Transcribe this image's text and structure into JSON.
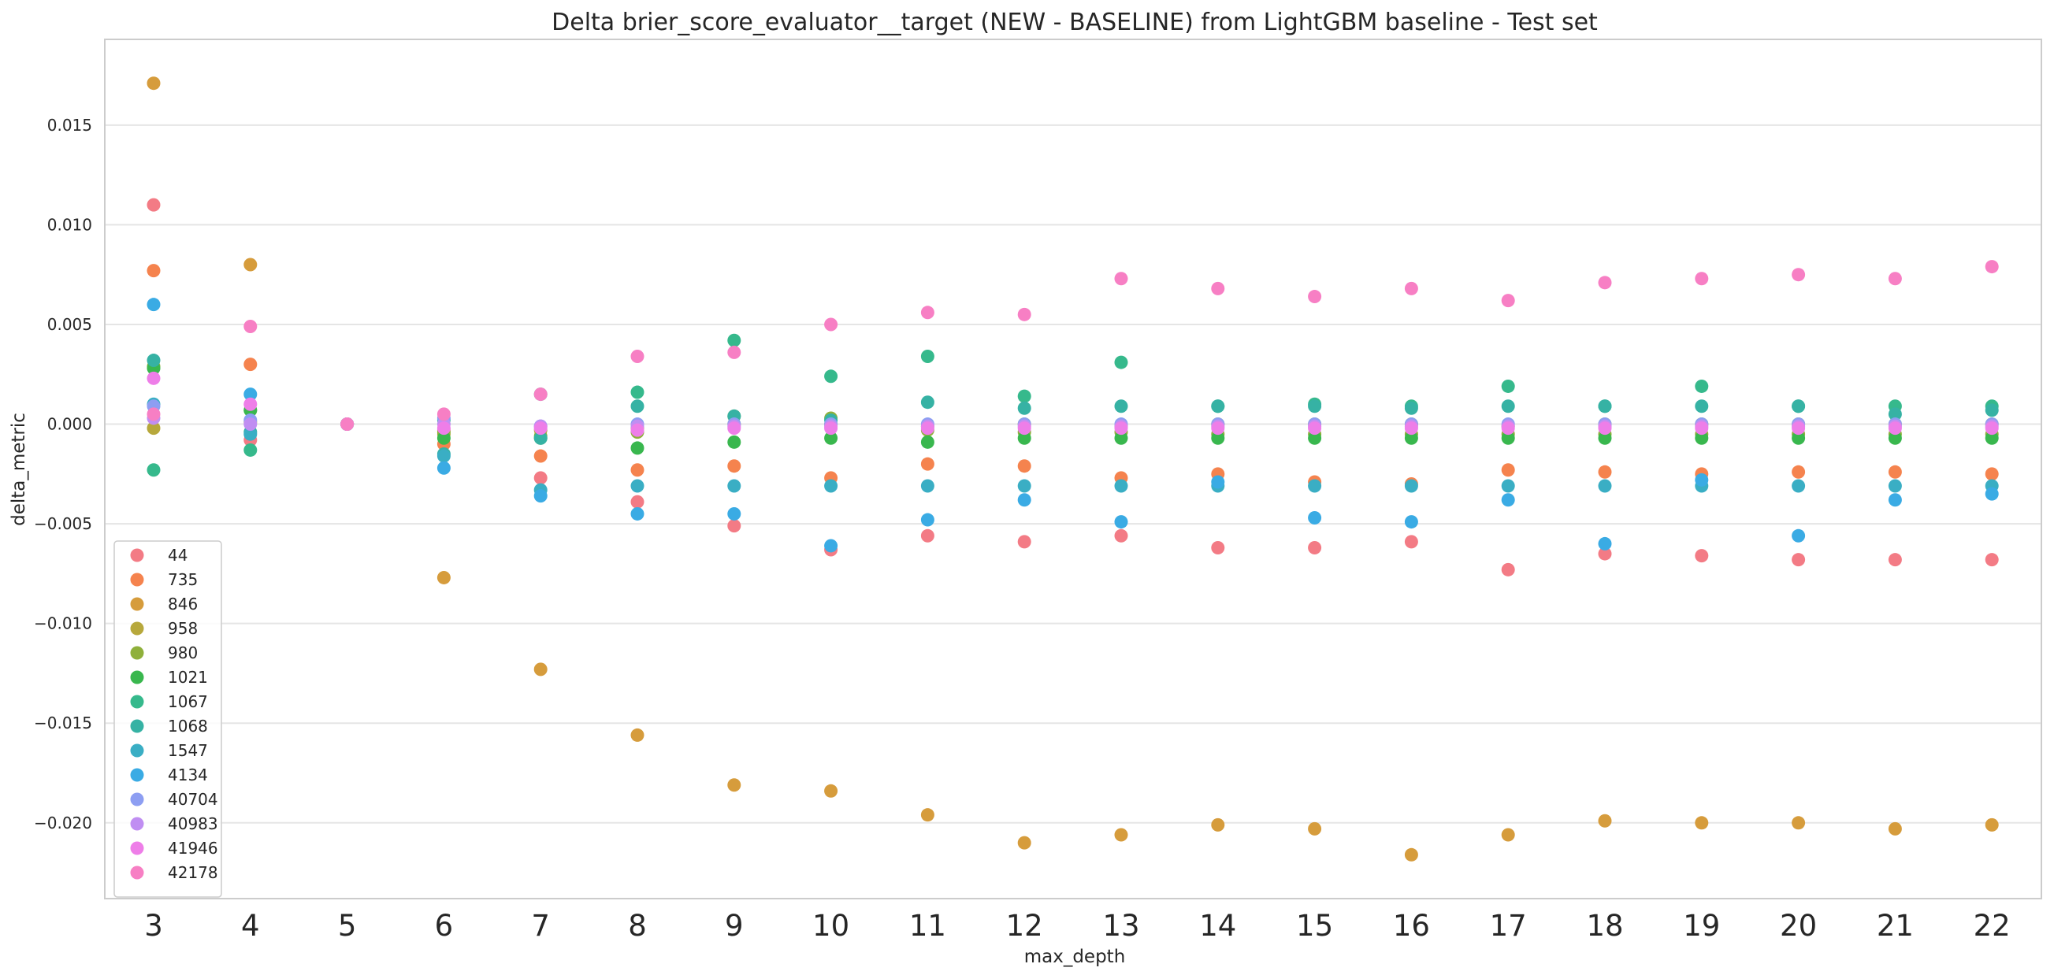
{
  "chart_data": {
    "type": "scatter",
    "title": "Delta brier_score_evaluator__target (NEW - BASELINE) from LightGBM baseline - Test set",
    "xlabel": "max_depth",
    "ylabel": "delta_metric",
    "ylim": [
      -0.0238,
      0.0193
    ],
    "yticks": [
      "0.015",
      "0.010",
      "0.005",
      "0.000",
      "−0.005",
      "−0.010",
      "−0.015",
      "−0.020"
    ],
    "ytick_values": [
      0.015,
      0.01,
      0.005,
      0.0,
      -0.005,
      -0.01,
      -0.015,
      -0.02
    ],
    "categories": [
      "3",
      "4",
      "5",
      "6",
      "7",
      "8",
      "9",
      "10",
      "11",
      "12",
      "13",
      "14",
      "15",
      "16",
      "17",
      "18",
      "19",
      "20",
      "21",
      "22"
    ],
    "grid": "horizontal",
    "legend_placement": "lower-left",
    "series": [
      {
        "name": "44",
        "color": "#f37b85",
        "values": [
          0.011,
          -0.0008,
          0.0,
          -0.0003,
          -0.0027,
          -0.0039,
          -0.0051,
          -0.0063,
          -0.0056,
          -0.0059,
          -0.0056,
          -0.0062,
          -0.0062,
          -0.0059,
          -0.0073,
          -0.0065,
          -0.0066,
          -0.0068,
          -0.0068,
          -0.0068
        ]
      },
      {
        "name": "735",
        "color": "#f5834e",
        "values": [
          0.0077,
          0.003,
          0.0,
          -0.001,
          -0.0016,
          -0.0023,
          -0.0021,
          -0.0027,
          -0.002,
          -0.0021,
          -0.0027,
          -0.0025,
          -0.0029,
          -0.003,
          -0.0023,
          -0.0024,
          -0.0025,
          -0.0024,
          -0.0024,
          -0.0025
        ]
      },
      {
        "name": "846",
        "color": "#d69c3c",
        "values": [
          0.0171,
          0.008,
          0.0,
          -0.0077,
          -0.0123,
          -0.0156,
          -0.0181,
          -0.0184,
          -0.0196,
          -0.021,
          -0.0206,
          -0.0201,
          -0.0203,
          -0.0216,
          -0.0206,
          -0.0199,
          -0.02,
          -0.02,
          -0.0203,
          -0.0201
        ]
      },
      {
        "name": "958",
        "color": "#b7a83c",
        "values": [
          -0.0002,
          0.0001,
          0.0,
          -0.0005,
          -0.0003,
          -0.0002,
          0.0,
          0.0,
          -0.0001,
          0.0,
          -0.0001,
          0.0,
          0.0,
          0.0,
          -0.0001,
          0.0,
          0.0,
          0.0,
          0.0,
          0.0
        ]
      },
      {
        "name": "980",
        "color": "#8fb03b",
        "values": [
          0.0029,
          0.0007,
          0.0,
          -0.0004,
          -0.0006,
          -0.0004,
          0.0004,
          0.0003,
          -0.0003,
          -0.0004,
          -0.0004,
          -0.0005,
          -0.0005,
          -0.0005,
          -0.0005,
          -0.0005,
          -0.0005,
          -0.0005,
          -0.0005,
          -0.0005
        ]
      },
      {
        "name": "1021",
        "color": "#39b74e",
        "values": [
          0.0028,
          0.0007,
          0.0,
          -0.0007,
          -0.0007,
          -0.0012,
          -0.0009,
          -0.0007,
          -0.0009,
          -0.0007,
          -0.0007,
          -0.0007,
          -0.0007,
          -0.0007,
          -0.0007,
          -0.0007,
          -0.0007,
          -0.0007,
          -0.0007,
          -0.0007
        ]
      },
      {
        "name": "1067",
        "color": "#36b98c",
        "values": [
          -0.0023,
          -0.0013,
          0.0,
          0.0002,
          0.0015,
          0.0016,
          0.0042,
          0.0024,
          0.0034,
          0.0014,
          0.0031,
          0.0009,
          0.001,
          0.0009,
          0.0019,
          0.0009,
          0.0019,
          0.0009,
          0.0009,
          0.0009
        ]
      },
      {
        "name": "1068",
        "color": "#36b2a4",
        "values": [
          0.0032,
          -0.0004,
          0.0,
          -0.0015,
          -0.0007,
          0.0009,
          0.0004,
          0.0002,
          0.0011,
          0.0008,
          0.0009,
          0.0009,
          0.0009,
          0.0008,
          0.0009,
          0.0009,
          0.0009,
          0.0009,
          0.0005,
          0.0007
        ]
      },
      {
        "name": "1547",
        "color": "#3aaec4",
        "values": [
          0.001,
          -0.0005,
          0.0,
          -0.0016,
          -0.0033,
          -0.0031,
          -0.0031,
          -0.0031,
          -0.0031,
          -0.0031,
          -0.0031,
          -0.0031,
          -0.0031,
          -0.0031,
          -0.0031,
          -0.0031,
          -0.0031,
          -0.0031,
          -0.0031,
          -0.0031
        ]
      },
      {
        "name": "4134",
        "color": "#3aabe4",
        "values": [
          0.006,
          0.0015,
          0.0,
          -0.0022,
          -0.0036,
          -0.0045,
          -0.0045,
          -0.0061,
          -0.0048,
          -0.0038,
          -0.0049,
          -0.0029,
          -0.0047,
          -0.0049,
          -0.0038,
          -0.006,
          -0.0028,
          -0.0056,
          -0.0038,
          -0.0035
        ]
      },
      {
        "name": "40704",
        "color": "#8d9ef2",
        "values": [
          0.0009,
          0.0002,
          0.0,
          0.0003,
          -0.0001,
          0.0,
          0.0,
          0.0,
          0.0,
          0.0,
          0.0,
          0.0,
          0.0,
          0.0,
          0.0,
          0.0,
          0.0,
          0.0,
          0.0,
          0.0
        ]
      },
      {
        "name": "40983",
        "color": "#c08ef2",
        "values": [
          0.0003,
          0.0,
          0.0,
          0.0,
          -0.0001,
          -0.0001,
          -0.0001,
          -0.0001,
          -0.0001,
          -0.0001,
          -0.0001,
          -0.0001,
          -0.0001,
          -0.0001,
          -0.0001,
          -0.0001,
          -0.0001,
          -0.0001,
          -0.0001,
          -0.0001
        ]
      },
      {
        "name": "41946",
        "color": "#ee7ee8",
        "values": [
          0.0023,
          0.001,
          0.0,
          -0.0002,
          -0.0002,
          -0.0003,
          -0.0002,
          -0.0002,
          -0.0002,
          -0.0002,
          -0.0002,
          -0.0002,
          -0.0002,
          -0.0002,
          -0.0002,
          -0.0002,
          -0.0002,
          -0.0002,
          -0.0002,
          -0.0002
        ]
      },
      {
        "name": "42178",
        "color": "#f77fc4",
        "values": [
          0.0005,
          0.0049,
          0.0,
          0.0005,
          0.0015,
          0.0034,
          0.0036,
          0.005,
          0.0056,
          0.0055,
          0.0073,
          0.0068,
          0.0064,
          0.0068,
          0.0062,
          0.0071,
          0.0073,
          0.0075,
          0.0073,
          0.0079
        ]
      }
    ]
  }
}
